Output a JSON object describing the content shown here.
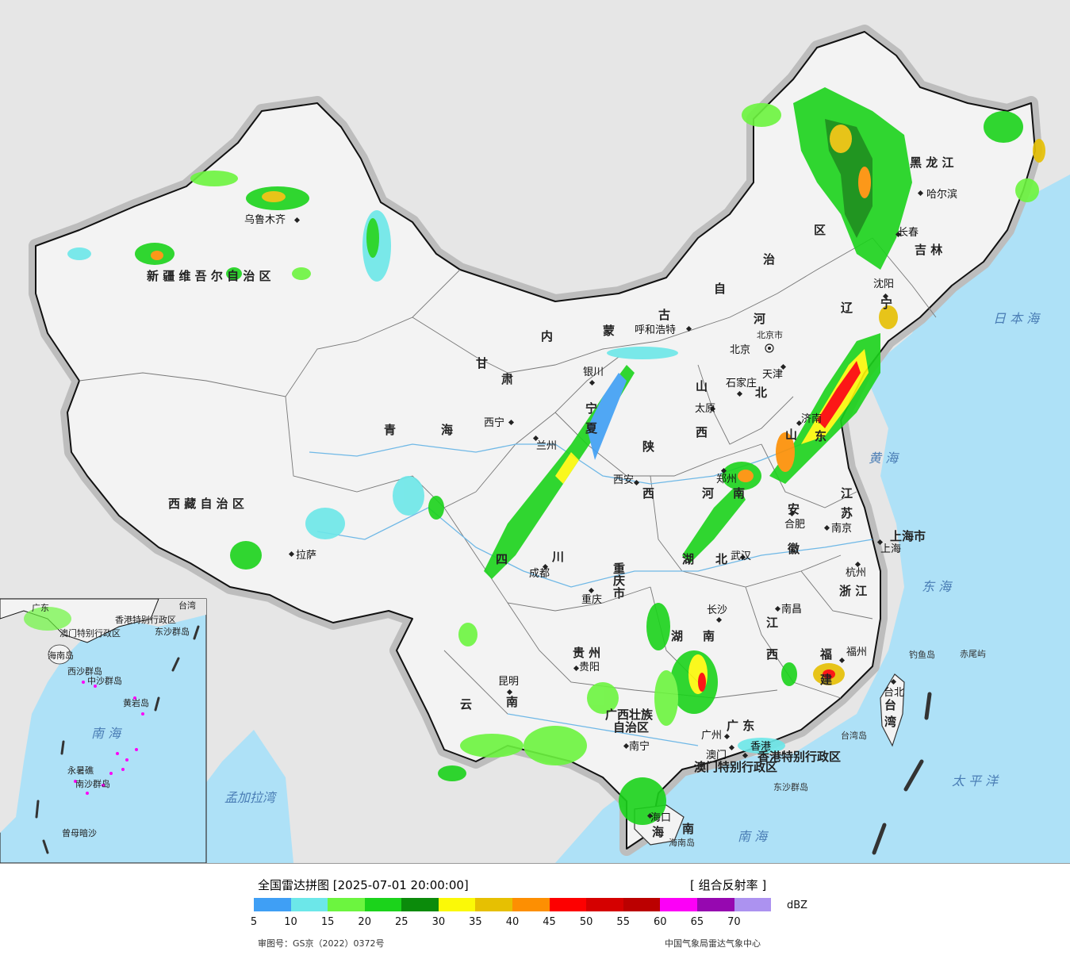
{
  "map": {
    "province_labels": [
      {
        "id": "xinjiang",
        "text": "新 疆 维 吾 尔 自 治 区"
      },
      {
        "id": "xizang",
        "text": "西 藏 自 治 区"
      },
      {
        "id": "qinghai_qing",
        "text": "青"
      },
      {
        "id": "qinghai_hai",
        "text": "海"
      },
      {
        "id": "gansu_gan",
        "text": "甘"
      },
      {
        "id": "gansu_su",
        "text": "肃"
      },
      {
        "id": "neimeng_nei",
        "text": "内"
      },
      {
        "id": "neimeng_meng",
        "text": "蒙"
      },
      {
        "id": "neimeng_gu",
        "text": "古"
      },
      {
        "id": "neimeng_zi",
        "text": "自"
      },
      {
        "id": "neimeng_zhi",
        "text": "治"
      },
      {
        "id": "neimeng_qu",
        "text": "区"
      },
      {
        "id": "heilongjiang",
        "text": "黑 龙 江"
      },
      {
        "id": "jilin",
        "text": "吉 林"
      },
      {
        "id": "liaoning_liao",
        "text": "辽"
      },
      {
        "id": "liaoning_ning",
        "text": "宁"
      },
      {
        "id": "hebei_he",
        "text": "河"
      },
      {
        "id": "hebei_bei",
        "text": "北"
      },
      {
        "id": "shanxi_shan",
        "text": "山"
      },
      {
        "id": "shanxi_xi",
        "text": "西"
      },
      {
        "id": "shandong_shan",
        "text": "山"
      },
      {
        "id": "shandong_dong",
        "text": "东"
      },
      {
        "id": "shaanxi_shan",
        "text": "陕"
      },
      {
        "id": "shaanxi_xi",
        "text": "西"
      },
      {
        "id": "henan_he",
        "text": "河"
      },
      {
        "id": "henan_nan",
        "text": "南"
      },
      {
        "id": "ningxia_ning",
        "text": "宁"
      },
      {
        "id": "ningxia_xia",
        "text": "夏"
      },
      {
        "id": "jiangsu_jiang",
        "text": "江"
      },
      {
        "id": "jiangsu_su",
        "text": "苏"
      },
      {
        "id": "anhui_an",
        "text": "安"
      },
      {
        "id": "anhui_hui",
        "text": "徽"
      },
      {
        "id": "hubei_hu",
        "text": "湖"
      },
      {
        "id": "hubei_bei",
        "text": "北"
      },
      {
        "id": "sichuan_si",
        "text": "四"
      },
      {
        "id": "sichuan_chuan",
        "text": "川"
      },
      {
        "id": "chongqing_1",
        "text": "重"
      },
      {
        "id": "chongqing_2",
        "text": "庆"
      },
      {
        "id": "chongqing_3",
        "text": "市"
      },
      {
        "id": "zhejiang",
        "text": "浙 江"
      },
      {
        "id": "shanghai",
        "text": "上海市"
      },
      {
        "id": "jiangxi_jiang",
        "text": "江"
      },
      {
        "id": "jiangxi_xi",
        "text": "西"
      },
      {
        "id": "hunan_hu",
        "text": "湖"
      },
      {
        "id": "hunan_nan",
        "text": "南"
      },
      {
        "id": "guizhou",
        "text": "贵 州"
      },
      {
        "id": "fujian_fu",
        "text": "福"
      },
      {
        "id": "fujian_jian",
        "text": "建"
      },
      {
        "id": "yunnan_yun",
        "text": "云"
      },
      {
        "id": "yunnan_nan",
        "text": "南"
      },
      {
        "id": "guangxi_1",
        "text": "广西壮族"
      },
      {
        "id": "guangxi_2",
        "text": "自治区"
      },
      {
        "id": "guangdong",
        "text": "广 东"
      },
      {
        "id": "taiwan_tai",
        "text": "台"
      },
      {
        "id": "taiwan_wan",
        "text": "湾"
      },
      {
        "id": "hainan_hai",
        "text": "海"
      },
      {
        "id": "hainan_nan",
        "text": "南"
      },
      {
        "id": "hk",
        "text": "香港特别行政区"
      },
      {
        "id": "macau",
        "text": "澳门特别行政区"
      }
    ],
    "city_labels": [
      {
        "id": "urumqi",
        "text": "乌鲁木齐"
      },
      {
        "id": "lhasa",
        "text": "拉萨"
      },
      {
        "id": "xining",
        "text": "西宁"
      },
      {
        "id": "lanzhou",
        "text": "兰州"
      },
      {
        "id": "yinchuan",
        "text": "银川"
      },
      {
        "id": "hohhot",
        "text": "呼和浩特"
      },
      {
        "id": "harbin",
        "text": "哈尔滨"
      },
      {
        "id": "changchun",
        "text": "长春"
      },
      {
        "id": "shenyang",
        "text": "沈阳"
      },
      {
        "id": "beijing",
        "text": "北京"
      },
      {
        "id": "beijing_city",
        "text": "北京市"
      },
      {
        "id": "tianjin",
        "text": "天津"
      },
      {
        "id": "shijiazhuang",
        "text": "石家庄"
      },
      {
        "id": "taiyuan",
        "text": "太原"
      },
      {
        "id": "jinan",
        "text": "济南"
      },
      {
        "id": "xian",
        "text": "西安"
      },
      {
        "id": "zhengzhou",
        "text": "郑州"
      },
      {
        "id": "hefei",
        "text": "合肥"
      },
      {
        "id": "nanjing",
        "text": "南京"
      },
      {
        "id": "shanghai_c",
        "text": "上海"
      },
      {
        "id": "hangzhou",
        "text": "杭州"
      },
      {
        "id": "wuhan",
        "text": "武汉"
      },
      {
        "id": "chengdu",
        "text": "成都"
      },
      {
        "id": "chongqing_c",
        "text": "重庆"
      },
      {
        "id": "changsha",
        "text": "长沙"
      },
      {
        "id": "nanchang",
        "text": "南昌"
      },
      {
        "id": "fuzhou",
        "text": "福州"
      },
      {
        "id": "guiyang",
        "text": "贵阳"
      },
      {
        "id": "kunming",
        "text": "昆明"
      },
      {
        "id": "nanning",
        "text": "南宁"
      },
      {
        "id": "guangzhou",
        "text": "广州"
      },
      {
        "id": "macau_c",
        "text": "澳门"
      },
      {
        "id": "hongkong_c",
        "text": "香港"
      },
      {
        "id": "haikou",
        "text": "海口"
      },
      {
        "id": "taipei",
        "text": "台北"
      }
    ],
    "sea_labels": [
      {
        "id": "riben",
        "text": "日 本 海"
      },
      {
        "id": "huang",
        "text": "黄  海"
      },
      {
        "id": "dong",
        "text": "东  海"
      },
      {
        "id": "taiping",
        "text": "太  平  洋"
      },
      {
        "id": "nan",
        "text": "南    海"
      },
      {
        "id": "mengjiala",
        "text": "孟加拉湾"
      }
    ],
    "island_labels": [
      {
        "id": "diaoyu",
        "text": "钓鱼岛"
      },
      {
        "id": "chiwei",
        "text": "赤尾屿"
      },
      {
        "id": "taiwan_dao",
        "text": "台湾岛"
      },
      {
        "id": "dongsha",
        "text": "东沙群岛"
      },
      {
        "id": "hainan_dao",
        "text": "海南岛"
      }
    ],
    "inset": {
      "sea": "南  海",
      "labels": [
        "中沙群岛",
        "南沙群岛",
        "西沙群岛",
        "黄岩岛",
        "东沙群岛",
        "曾母暗沙",
        "永暑礁",
        "海南岛",
        "香港特别行政区",
        "澳门特别行政区",
        "广东",
        "台湾"
      ]
    }
  },
  "legend": {
    "title": "全国雷达拼图 [2025-07-01 20:00:00]",
    "product": "[ 组合反射率 ]",
    "unit": "dBZ",
    "ticks": [
      "5",
      "10",
      "15",
      "20",
      "25",
      "30",
      "35",
      "40",
      "45",
      "50",
      "55",
      "60",
      "65",
      "70"
    ],
    "colors": [
      "#3f9ff5",
      "#6ce7e9",
      "#6cf53f",
      "#1bd31b",
      "#0b8b0b",
      "#fbf907",
      "#e6c002",
      "#fd8f02",
      "#fd0000",
      "#d50000",
      "#bb0000",
      "#fc00f7",
      "#9608b0",
      "#ac92f0"
    ],
    "review_number": "审图号：GS京（2022）0372号",
    "source": "中国气象局雷达气象中心"
  }
}
